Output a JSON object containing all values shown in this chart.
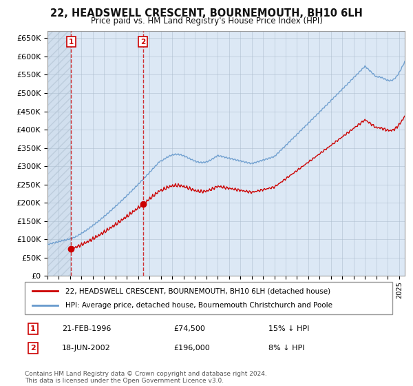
{
  "title": "22, HEADSWELL CRESCENT, BOURNEMOUTH, BH10 6LH",
  "subtitle": "Price paid vs. HM Land Registry's House Price Index (HPI)",
  "property_label": "22, HEADSWELL CRESCENT, BOURNEMOUTH, BH10 6LH (detached house)",
  "hpi_label": "HPI: Average price, detached house, Bournemouth Christchurch and Poole",
  "footer": "Contains HM Land Registry data © Crown copyright and database right 2024.\nThis data is licensed under the Open Government Licence v3.0.",
  "sale1_date": "21-FEB-1996",
  "sale1_price": 74500,
  "sale1_pct": "15% ↓ HPI",
  "sale2_date": "18-JUN-2002",
  "sale2_price": 196000,
  "sale2_pct": "8% ↓ HPI",
  "ylim": [
    0,
    670000
  ],
  "yticks": [
    0,
    50000,
    100000,
    150000,
    200000,
    250000,
    300000,
    350000,
    400000,
    450000,
    500000,
    550000,
    600000,
    650000
  ],
  "sale_color": "#cc0000",
  "hpi_color": "#6699cc",
  "marker_color": "#cc0000",
  "bg_color": "#ffffff",
  "plot_bg": "#dce8f5",
  "hatch_bg": "#c8d8e8",
  "grid_color": "#aabbcc"
}
